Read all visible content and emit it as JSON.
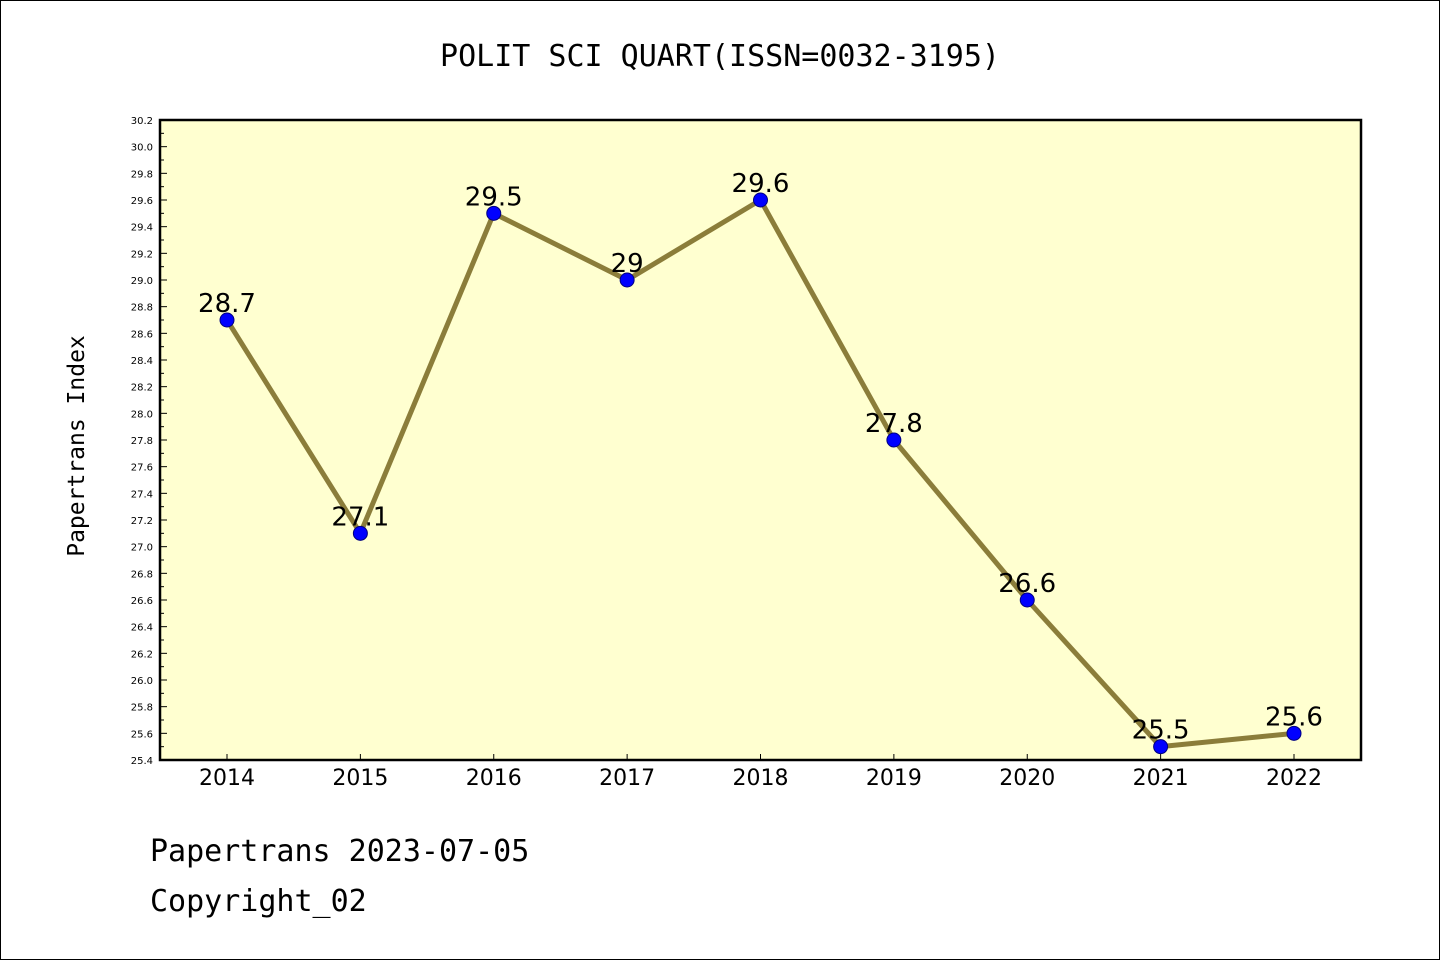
{
  "chart_data": {
    "type": "line",
    "title": "POLIT SCI QUART(ISSN=0032-3195)",
    "xlabel": "",
    "ylabel": "Papertrans Index",
    "categories": [
      "2014",
      "2015",
      "2016",
      "2017",
      "2018",
      "2019",
      "2020",
      "2021",
      "2022"
    ],
    "series": [
      {
        "values": [
          28.7,
          27.1,
          29.5,
          29.0,
          29.6,
          27.8,
          26.6,
          25.5,
          25.6
        ],
        "labels": [
          "28.7",
          "27.1",
          "29.5",
          "29",
          "29.6",
          "27.8",
          "26.6",
          "25.5",
          "25.6"
        ]
      }
    ],
    "ylim": [
      25.4,
      30.2
    ],
    "yticks": [
      "25.4",
      "25.6",
      "25.8",
      "26.0",
      "26.2",
      "26.4",
      "26.6",
      "26.8",
      "27.0",
      "27.2",
      "27.4",
      "27.6",
      "27.8",
      "28.0",
      "28.2",
      "28.4",
      "28.6",
      "28.8",
      "29.0",
      "29.2",
      "29.4",
      "29.6",
      "29.8",
      "30.0",
      "30.2"
    ],
    "grid": false,
    "legend": "none",
    "colors": {
      "plot_background": "#ffffd0",
      "line": "#8b7d3a",
      "marker": "#0000ff",
      "axis": "#000000"
    }
  },
  "footer": {
    "line1": "Papertrans 2023-07-05",
    "line2": "Copyright_02"
  }
}
